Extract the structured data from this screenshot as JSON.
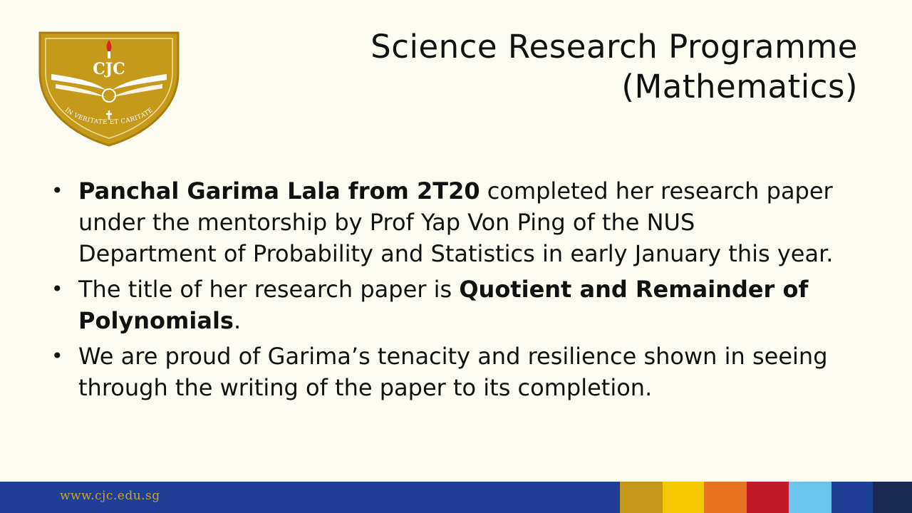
{
  "logo": {
    "text": "CJC",
    "motto": "IN VERITATE ET CARITATE",
    "colors": {
      "gold": "#c59a1a",
      "dark_gold": "#a87f0e",
      "white": "#ffffff"
    }
  },
  "title": {
    "line1": "Science Research Programme",
    "line2": "(Mathematics)"
  },
  "bullets": {
    "b1_bold": "Panchal Garima Lala from 2T20",
    "b1_text": " completed her research paper under the mentorship by Prof Yap Von Ping of the NUS Department of Probability and Statistics in early January this year.",
    "b2_text": "The title of her research paper is ",
    "b2_bold": "Quotient and Remainder of Polynomials",
    "b2_end": ".",
    "b3_text": "We are proud of Garima’s tenacity and resilience shown in seeing through the writing of the paper to its completion.",
    "marker": "•"
  },
  "footer": {
    "url": "www.cjc.edu.sg",
    "colors": {
      "bar": "#1f3e96",
      "strips": [
        "#c4961a",
        "#f5c800",
        "#e8731f",
        "#bf1b26",
        "#6cc4ec",
        "#1f3e96",
        "#1b2a55"
      ]
    }
  }
}
